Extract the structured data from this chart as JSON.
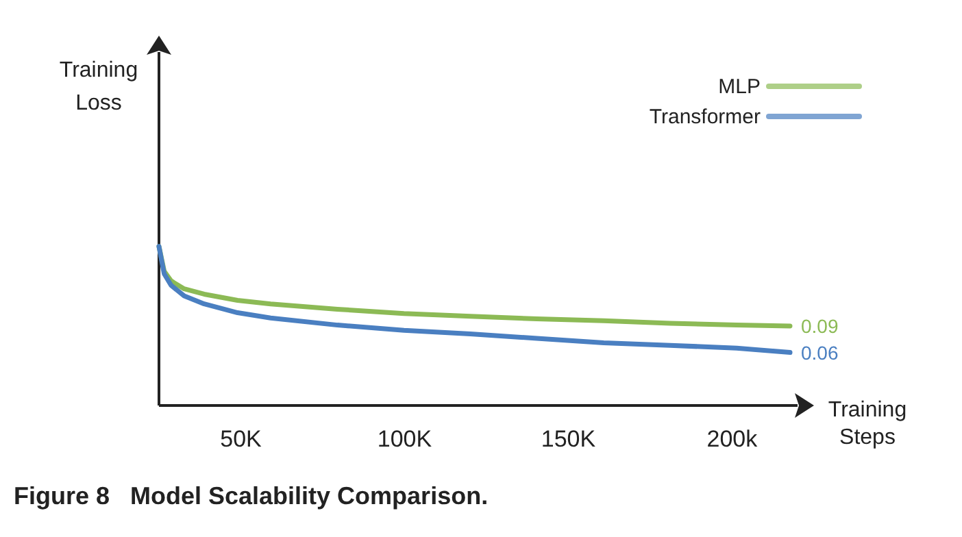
{
  "chart_data": {
    "type": "line",
    "title": "Figure 8   Model Scalability Comparison.",
    "xlabel": "Training Steps",
    "ylabel": "Training Loss",
    "legend": "top right",
    "tick_labels": "x",
    "xlim": [
      25000,
      220000
    ],
    "ylim": [
      0,
      0.4
    ],
    "xticks": [
      {
        "value": 50000,
        "label": "50K"
      },
      {
        "value": 100000,
        "label": "100K"
      },
      {
        "value": 150000,
        "label": "150K"
      },
      {
        "value": 200000,
        "label": "200k"
      }
    ],
    "x": [
      25000,
      26600,
      28700,
      32700,
      38800,
      49000,
      59100,
      79500,
      99800,
      120100,
      140400,
      160800,
      181100,
      201400,
      217700
    ],
    "series": [
      {
        "name": "MLP",
        "color": "#8cba55",
        "values": [
          0.18,
          0.152,
          0.141,
          0.132,
          0.126,
          0.119,
          0.115,
          0.109,
          0.104,
          0.101,
          0.098,
          0.096,
          0.093,
          0.091,
          0.09
        ],
        "value_labels": [
          null,
          null,
          null,
          null,
          null,
          null,
          null,
          null,
          null,
          null,
          null,
          null,
          null,
          null,
          "0.09"
        ]
      },
      {
        "name": "Transformer",
        "color": "#4a7fc1",
        "values": [
          0.18,
          0.149,
          0.136,
          0.124,
          0.115,
          0.105,
          0.099,
          0.091,
          0.085,
          0.081,
          0.076,
          0.071,
          0.068,
          0.065,
          0.06
        ],
        "value_labels": [
          null,
          null,
          null,
          null,
          null,
          null,
          null,
          null,
          null,
          null,
          null,
          null,
          null,
          null,
          "0.06"
        ]
      }
    ]
  }
}
